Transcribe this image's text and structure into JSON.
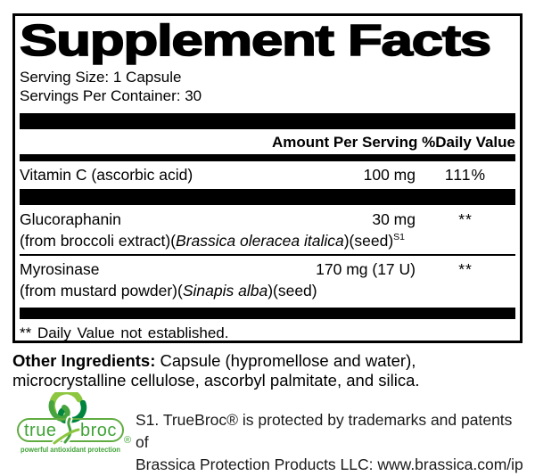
{
  "panel": {
    "title": "Supplement Facts",
    "serving_size": "Serving Size: 1 Capsule",
    "servings_per_container": "Servings Per Container: 30",
    "columns": {
      "amount": "Amount Per Serving",
      "dv": "%Daily Value"
    },
    "rows": [
      {
        "name": "Vitamin C (ascorbic acid)",
        "amount": "100 mg",
        "dv": "111%",
        "sub": []
      },
      {
        "name": "Glucoraphanin",
        "amount": "30 mg",
        "dv": "**",
        "sub": [
          {
            "text": "(from broccoli extract)("
          },
          {
            "text": "Brassica oleracea italica",
            "italic": true
          },
          {
            "text": ")(seed)"
          },
          {
            "text": "S1",
            "sup": true
          }
        ]
      },
      {
        "name": "Myrosinase",
        "amount": "170 mg (17 U)",
        "dv": "**",
        "sub": [
          {
            "text": "(from mustard powder)("
          },
          {
            "text": "Sinapis alba",
            "italic": true
          },
          {
            "text": ")(seed)"
          }
        ]
      }
    ],
    "footnote": "** Daily Value not established."
  },
  "other_ingredients": {
    "label": "Other Ingredients:",
    "text": "Capsule (hypromellose and water), microcrystalline cellulose, ascorbyl palmitate, and silica."
  },
  "trademark": {
    "line1": "S1. TrueBroc® is protected by trademarks and patents of",
    "line2": "Brassica Protection Products LLC: www.brassica.com/ip"
  },
  "logo": {
    "word_left": "true",
    "word_right": "broc",
    "tagline": "powerful antioxidant protection",
    "registered": "®",
    "colors": {
      "light_green": "#8dc63f",
      "mid_green": "#46a43e",
      "dark_green": "#00843e",
      "text_green": "#41a338",
      "outline_green": "#61ac41"
    }
  }
}
